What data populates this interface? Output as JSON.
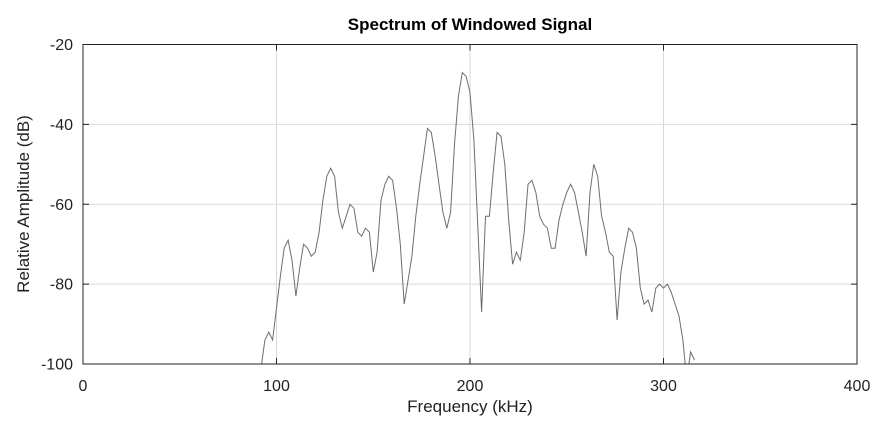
{
  "chart_data": {
    "type": "line",
    "title": "Spectrum of Windowed Signal",
    "xlabel": "Frequency (kHz)",
    "ylabel": "Relative Amplitude (dB)",
    "xlim": [
      0,
      400
    ],
    "ylim": [
      -100,
      -20
    ],
    "xticks": [
      0,
      100,
      200,
      300,
      400
    ],
    "yticks": [
      -100,
      -80,
      -60,
      -40,
      -20
    ],
    "xtick_labels": [
      "0",
      "100",
      "200",
      "300",
      "400"
    ],
    "ytick_labels": [
      "-100",
      "-80",
      "-60",
      "-40",
      "-20"
    ],
    "grid": true,
    "series": [
      {
        "color": "#6e6e6e",
        "x": [
          92,
          94,
          96,
          98,
          100,
          102,
          104,
          106,
          108,
          110,
          112,
          114,
          116,
          118,
          120,
          122,
          124,
          126,
          128,
          130,
          132,
          134,
          136,
          138,
          140,
          142,
          144,
          146,
          148,
          150,
          152,
          154,
          156,
          158,
          160,
          162,
          164,
          166,
          168,
          170,
          172,
          174,
          176,
          178,
          180,
          182,
          184,
          186,
          188,
          190,
          192,
          194,
          196,
          198,
          200,
          202,
          204,
          206,
          208,
          210,
          212,
          214,
          216,
          218,
          220,
          222,
          224,
          226,
          228,
          230,
          232,
          234,
          236,
          238,
          240,
          242,
          244,
          246,
          248,
          250,
          252,
          254,
          256,
          258,
          260,
          262,
          264,
          266,
          268,
          270,
          272,
          274,
          276,
          278,
          280,
          282,
          284,
          286,
          288,
          290,
          292,
          294,
          296,
          298,
          300,
          302,
          304,
          306,
          308,
          310,
          312,
          314,
          316
        ],
        "y": [
          -101,
          -94,
          -92,
          -94,
          -86,
          -78,
          -71,
          -69,
          -74,
          -83,
          -76,
          -70,
          -71,
          -73,
          -72,
          -67,
          -59,
          -53,
          -51,
          -53,
          -62,
          -66,
          -63,
          -60,
          -61,
          -67,
          -68,
          -66,
          -67,
          -77,
          -72,
          -59,
          -55,
          -53,
          -54,
          -61,
          -70,
          -85,
          -79,
          -73,
          -63,
          -55,
          -48,
          -41,
          -42,
          -48,
          -55,
          -62,
          -66,
          -62,
          -45,
          -33,
          -27,
          -28,
          -32,
          -44,
          -65,
          -87,
          -63,
          -63,
          -52,
          -42,
          -43,
          -50,
          -64,
          -75,
          -72,
          -74,
          -67,
          -55,
          -54,
          -57,
          -63,
          -65,
          -66,
          -71,
          -71,
          -64,
          -60,
          -57,
          -55,
          -57,
          -62,
          -67,
          -73,
          -57,
          -50,
          -53,
          -63,
          -67,
          -72,
          -73,
          -89,
          -77,
          -71,
          -66,
          -67,
          -71,
          -81,
          -85,
          -84,
          -87,
          -81,
          -80,
          -81,
          -80,
          -82,
          -85,
          -88,
          -94,
          -104,
          -97,
          -99
        ]
      }
    ]
  }
}
